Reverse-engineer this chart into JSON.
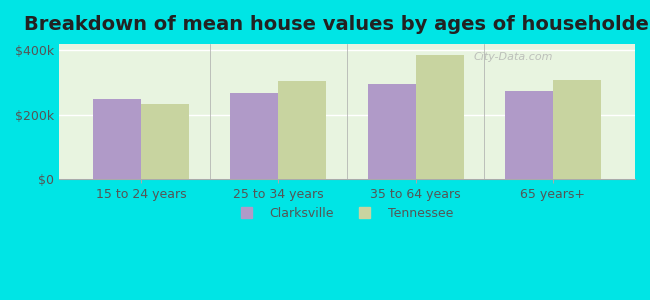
{
  "title": "Breakdown of mean house values by ages of householders",
  "categories": [
    "15 to 24 years",
    "25 to 34 years",
    "35 to 64 years",
    "65 years+"
  ],
  "clarksville": [
    248000,
    268000,
    295000,
    275000
  ],
  "tennessee": [
    235000,
    305000,
    385000,
    308000
  ],
  "clarksville_color": "#b09ac8",
  "tennessee_color": "#c8d4a0",
  "background_color": "#00e5e5",
  "plot_bg_color": "#e8f4e0",
  "ylim": [
    0,
    420000
  ],
  "yticks": [
    0,
    200000,
    400000
  ],
  "ytick_labels": [
    "$0",
    "$200k",
    "$400k"
  ],
  "legend_clarksville": "Clarksville",
  "legend_tennessee": "Tennessee",
  "bar_width": 0.35,
  "title_fontsize": 14,
  "tick_fontsize": 9,
  "legend_fontsize": 9
}
